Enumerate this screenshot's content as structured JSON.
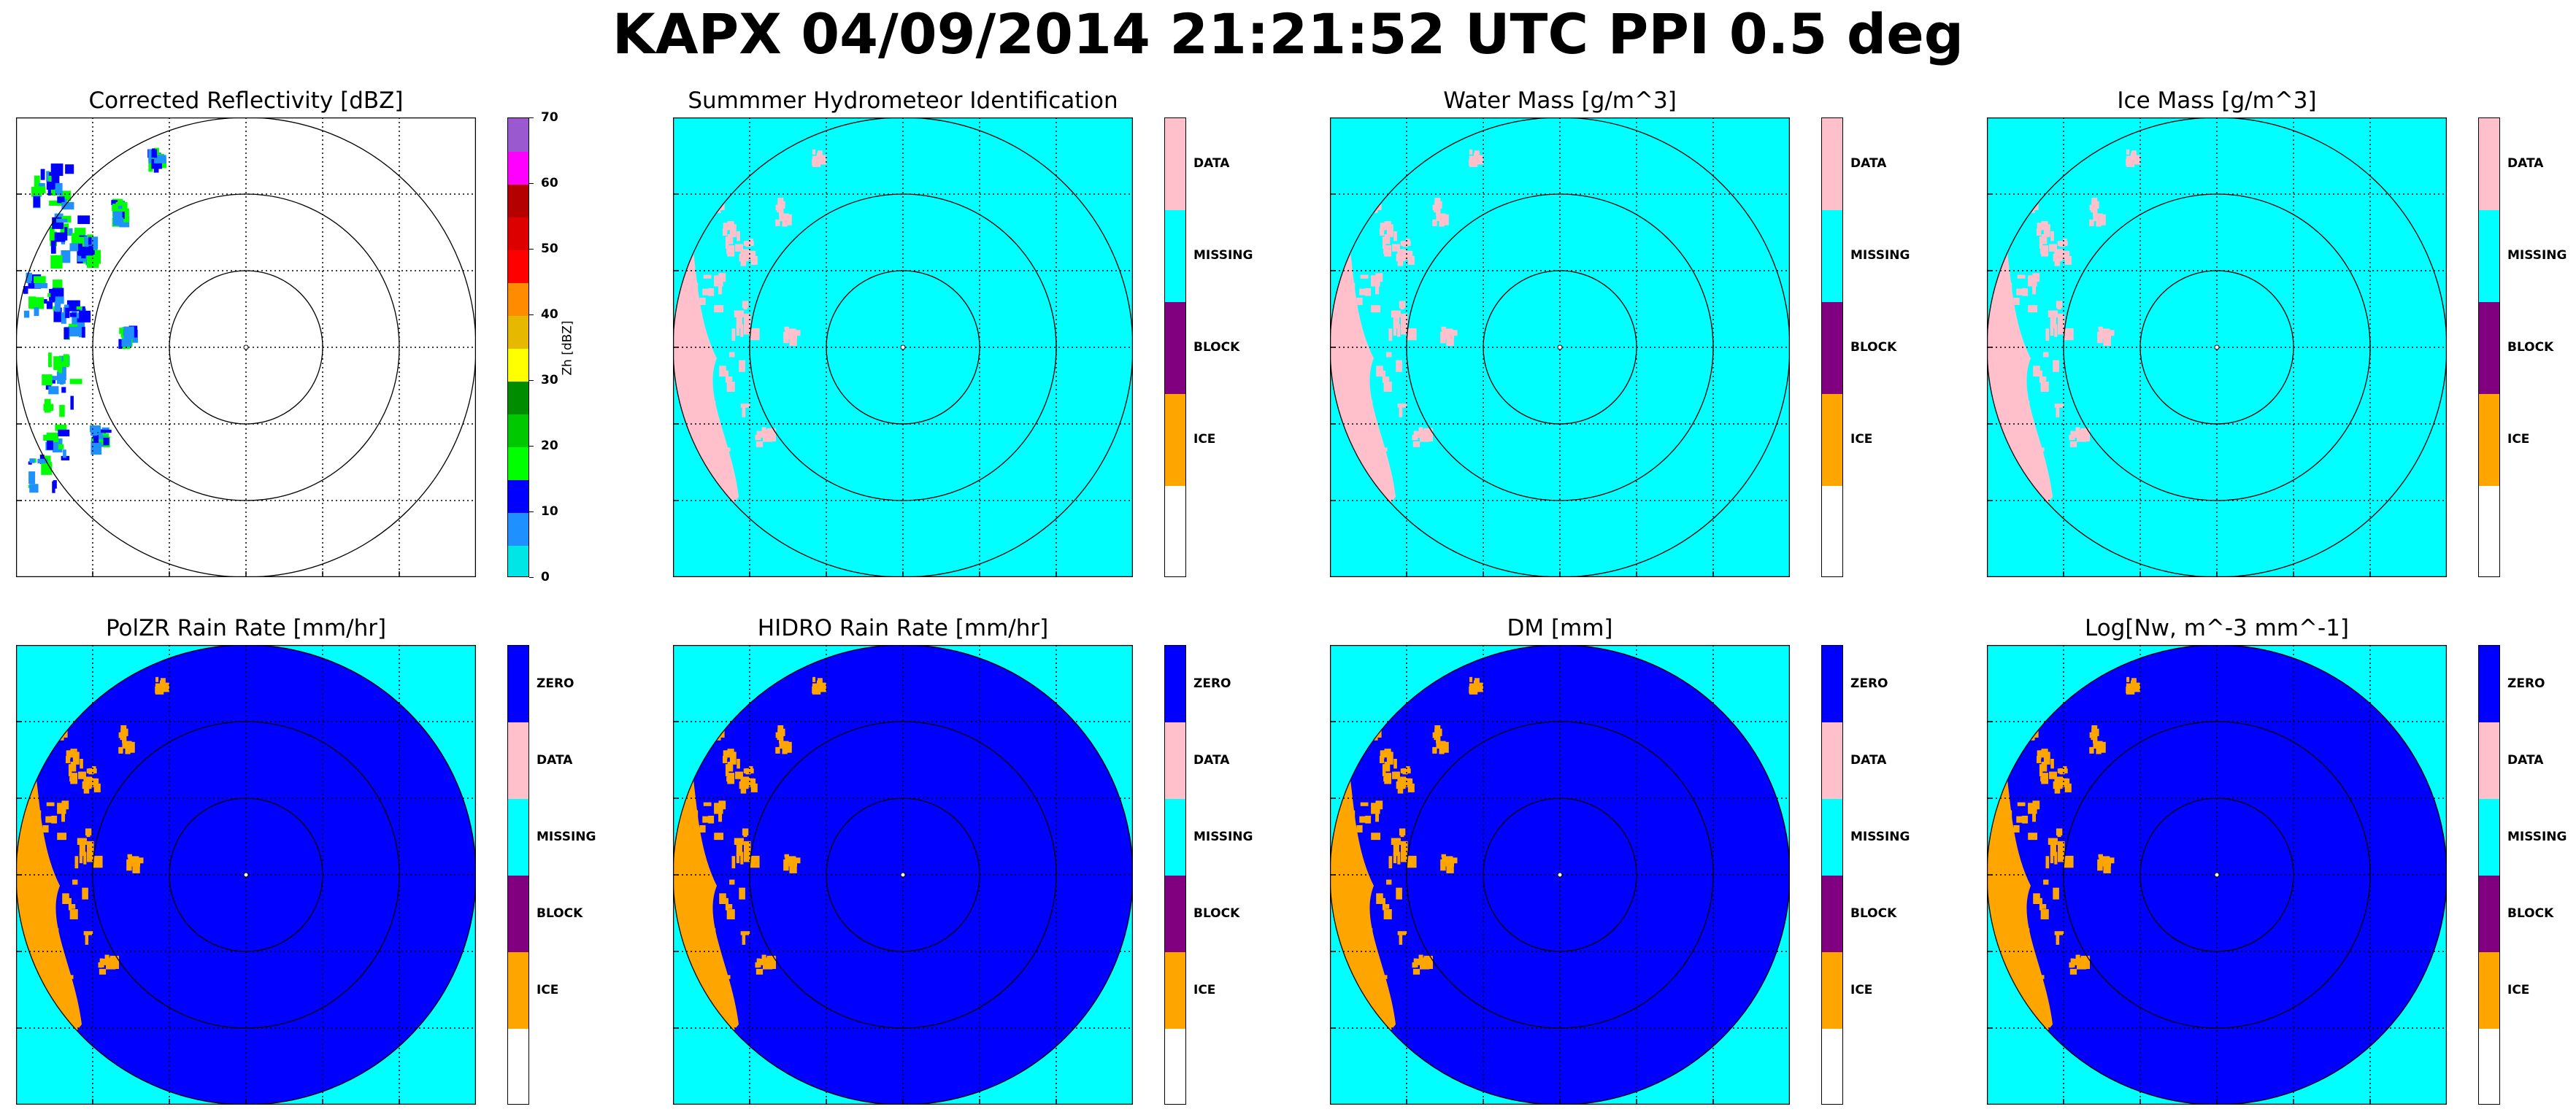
{
  "suptitle": "KAPX 04/09/2014 21:21:52 UTC PPI 0.5 deg",
  "category_colorbar": {
    "hydro_labels": [
      "DATA",
      "MISSING",
      "BLOCK",
      "ICE"
    ],
    "hydro_colors": [
      "#ffc0cb",
      "#00ffff",
      "#800080",
      "#ffa500",
      "#ffffff"
    ],
    "rain_labels": [
      "ZERO",
      "DATA",
      "MISSING",
      "BLOCK",
      "ICE"
    ],
    "rain_colors": [
      "#0000ff",
      "#ffc0cb",
      "#00ffff",
      "#800080",
      "#ffa500",
      "#ffffff"
    ]
  },
  "reflectivity_colorbar": {
    "label": "Zh [dBZ]",
    "ticks": [
      "0",
      "10",
      "20",
      "30",
      "40",
      "50",
      "60",
      "70"
    ],
    "colors": [
      "#00e5e5",
      "#1e90ff",
      "#0000ff",
      "#00ff00",
      "#00c800",
      "#008c00",
      "#ffff00",
      "#e6b800",
      "#ff8c00",
      "#ff0000",
      "#dd0000",
      "#b40000",
      "#ff00ff",
      "#9b59d0"
    ]
  },
  "chart_data": [
    {
      "type": "heatmap",
      "title": "Corrected Reflectivity [dBZ]",
      "colorbar": "reflectivity",
      "range_rings": 3,
      "background": "#ffffff",
      "echo_colors": [
        "#1e90ff",
        "#0000ff",
        "#00ff00"
      ]
    },
    {
      "type": "heatmap",
      "title": "Summmer Hydrometeor Identification",
      "colorbar": "hydro",
      "range_rings": 3,
      "background": "#00ffff",
      "inside_color": "#00ffff",
      "echo_color": "#ffc0cb"
    },
    {
      "type": "heatmap",
      "title": "Water Mass [g/m^3]",
      "colorbar": "hydro",
      "range_rings": 3,
      "background": "#00ffff",
      "inside_color": "#00ffff",
      "echo_color": "#ffc0cb"
    },
    {
      "type": "heatmap",
      "title": "Ice Mass [g/m^3]",
      "colorbar": "hydro",
      "range_rings": 3,
      "background": "#00ffff",
      "inside_color": "#00ffff",
      "echo_color": "#ffc0cb"
    },
    {
      "type": "heatmap",
      "title": "PolZR Rain Rate [mm/hr]",
      "colorbar": "rain",
      "range_rings": 3,
      "background": "#00ffff",
      "inside_color": "#0000ff",
      "echo_color": "#ffa500"
    },
    {
      "type": "heatmap",
      "title": "HIDRO Rain Rate [mm/hr]",
      "colorbar": "rain",
      "range_rings": 3,
      "background": "#00ffff",
      "inside_color": "#0000ff",
      "echo_color": "#ffa500"
    },
    {
      "type": "heatmap",
      "title": "DM [mm]",
      "colorbar": "rain",
      "range_rings": 3,
      "background": "#00ffff",
      "inside_color": "#0000ff",
      "echo_color": "#ffa500"
    },
    {
      "type": "heatmap",
      "title": "Log[Nw, m^-3 mm^-1]",
      "colorbar": "rain",
      "range_rings": 3,
      "background": "#00ffff",
      "inside_color": "#0000ff",
      "echo_color": "#ffa500"
    }
  ]
}
